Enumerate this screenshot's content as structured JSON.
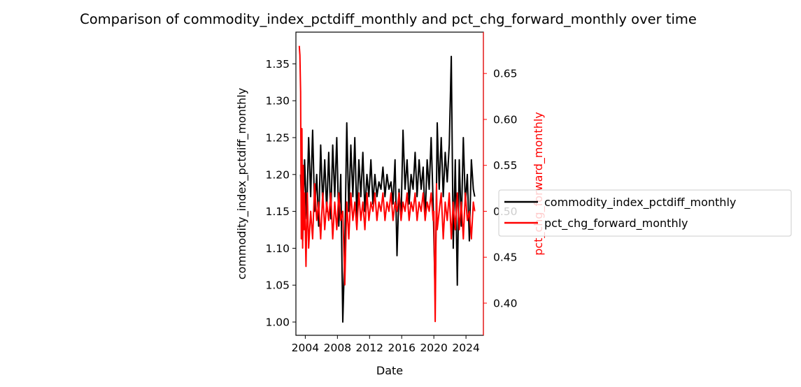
{
  "chart_data": {
    "type": "line",
    "title": "Comparison of commodity_index_pctdiff_monthly and pct_chg_forward_monthly over time",
    "xlabel": "Date",
    "ylabel_left": "commodity_index_pctdiff_monthly",
    "ylabel_right": "pct_chg_forward_monthly",
    "x_ticks": [
      "2004",
      "2008",
      "2012",
      "2016",
      "2020",
      "2024"
    ],
    "y_left_ticks": [
      "1.00",
      "1.05",
      "1.10",
      "1.15",
      "1.20",
      "1.25",
      "1.30",
      "1.35"
    ],
    "y_right_ticks": [
      "0.40",
      "0.45",
      "0.50",
      "0.55",
      "0.60",
      "0.65"
    ],
    "xlim": [
      "2002-11",
      "2026-03"
    ],
    "ylim_left": [
      0.982,
      1.393
    ],
    "ylim_right": [
      0.365,
      0.695
    ],
    "legend": {
      "placement": "right"
    },
    "colors": {
      "left_axis": "#000000",
      "right_axis": "#ff0000"
    },
    "series": [
      {
        "name": "commodity_index_pctdiff_monthly",
        "axis": "left",
        "color": "#000000",
        "x": [
          "2003-06",
          "2003-09",
          "2003-12",
          "2004-03",
          "2004-06",
          "2004-09",
          "2004-12",
          "2005-03",
          "2005-06",
          "2005-09",
          "2005-12",
          "2006-03",
          "2006-06",
          "2006-09",
          "2006-12",
          "2007-03",
          "2007-06",
          "2007-09",
          "2007-12",
          "2008-03",
          "2008-06",
          "2008-09",
          "2008-12",
          "2009-03",
          "2009-06",
          "2009-09",
          "2009-12",
          "2010-03",
          "2010-06",
          "2010-09",
          "2010-12",
          "2011-03",
          "2011-06",
          "2011-09",
          "2011-12",
          "2012-03",
          "2012-06",
          "2012-09",
          "2012-12",
          "2013-03",
          "2013-06",
          "2013-09",
          "2013-12",
          "2014-03",
          "2014-06",
          "2014-09",
          "2014-12",
          "2015-03",
          "2015-06",
          "2015-09",
          "2015-12",
          "2016-03",
          "2016-06",
          "2016-09",
          "2016-12",
          "2017-03",
          "2017-06",
          "2017-09",
          "2017-12",
          "2018-03",
          "2018-06",
          "2018-09",
          "2018-12",
          "2019-03",
          "2019-06",
          "2019-09",
          "2019-12",
          "2020-03",
          "2020-06",
          "2020-09",
          "2020-12",
          "2021-03",
          "2021-06",
          "2021-09",
          "2021-12",
          "2022-03",
          "2022-06",
          "2022-09",
          "2022-12",
          "2023-03",
          "2023-06",
          "2023-09",
          "2023-12",
          "2024-03",
          "2024-06",
          "2024-09",
          "2024-12",
          "2025-02"
        ],
        "values": [
          1.2,
          1.11,
          1.22,
          1.14,
          1.25,
          1.17,
          1.26,
          1.15,
          1.2,
          1.13,
          1.24,
          1.16,
          1.22,
          1.15,
          1.23,
          1.14,
          1.24,
          1.17,
          1.25,
          1.13,
          1.2,
          1.0,
          1.1,
          1.27,
          1.15,
          1.24,
          1.17,
          1.25,
          1.14,
          1.22,
          1.17,
          1.23,
          1.15,
          1.2,
          1.17,
          1.22,
          1.16,
          1.2,
          1.17,
          1.19,
          1.18,
          1.21,
          1.17,
          1.2,
          1.18,
          1.19,
          1.16,
          1.22,
          1.09,
          1.18,
          1.14,
          1.26,
          1.18,
          1.22,
          1.16,
          1.2,
          1.18,
          1.23,
          1.17,
          1.22,
          1.18,
          1.21,
          1.14,
          1.22,
          1.18,
          1.25,
          1.16,
          1.03,
          1.27,
          1.18,
          1.25,
          1.17,
          1.23,
          1.19,
          1.24,
          1.36,
          1.1,
          1.22,
          1.05,
          1.22,
          1.13,
          1.25,
          1.16,
          1.2,
          1.11,
          1.22,
          1.18,
          1.17
        ]
      },
      {
        "name": "pct_chg_forward_monthly",
        "axis": "right",
        "color": "#ff0000",
        "x": [
          "2003-04",
          "2003-05",
          "2003-06",
          "2003-07",
          "2003-08",
          "2003-09",
          "2003-10",
          "2003-11",
          "2003-12",
          "2004-02",
          "2004-04",
          "2004-06",
          "2004-09",
          "2004-12",
          "2005-03",
          "2005-06",
          "2005-09",
          "2005-12",
          "2006-03",
          "2006-06",
          "2006-09",
          "2006-12",
          "2007-03",
          "2007-06",
          "2007-09",
          "2007-12",
          "2008-03",
          "2008-06",
          "2008-09",
          "2008-12",
          "2009-03",
          "2009-06",
          "2009-09",
          "2009-12",
          "2010-03",
          "2010-06",
          "2010-09",
          "2010-12",
          "2011-03",
          "2011-06",
          "2011-09",
          "2011-12",
          "2012-03",
          "2012-06",
          "2012-09",
          "2012-12",
          "2013-03",
          "2013-06",
          "2013-09",
          "2013-12",
          "2014-03",
          "2014-06",
          "2014-09",
          "2014-12",
          "2015-03",
          "2015-06",
          "2015-09",
          "2015-12",
          "2016-03",
          "2016-06",
          "2016-09",
          "2016-12",
          "2017-03",
          "2017-06",
          "2017-09",
          "2017-12",
          "2018-03",
          "2018-06",
          "2018-09",
          "2018-12",
          "2019-03",
          "2019-06",
          "2019-09",
          "2019-12",
          "2020-01",
          "2020-03",
          "2020-05",
          "2020-06",
          "2020-09",
          "2020-12",
          "2021-03",
          "2021-06",
          "2021-09",
          "2021-12",
          "2022-03",
          "2022-06",
          "2022-09",
          "2022-12",
          "2023-03",
          "2023-06",
          "2023-09",
          "2023-12",
          "2024-03",
          "2024-06",
          "2024-09",
          "2024-12",
          "2025-02"
        ],
        "values": [
          0.68,
          0.67,
          0.63,
          0.47,
          0.59,
          0.46,
          0.55,
          0.48,
          0.52,
          0.44,
          0.52,
          0.46,
          0.5,
          0.47,
          0.53,
          0.49,
          0.51,
          0.47,
          0.52,
          0.48,
          0.51,
          0.49,
          0.52,
          0.47,
          0.51,
          0.48,
          0.52,
          0.49,
          0.5,
          0.42,
          0.51,
          0.47,
          0.52,
          0.49,
          0.51,
          0.48,
          0.52,
          0.49,
          0.51,
          0.48,
          0.52,
          0.49,
          0.51,
          0.5,
          0.52,
          0.49,
          0.51,
          0.5,
          0.52,
          0.49,
          0.51,
          0.5,
          0.52,
          0.49,
          0.51,
          0.5,
          0.52,
          0.49,
          0.51,
          0.5,
          0.52,
          0.49,
          0.51,
          0.5,
          0.52,
          0.49,
          0.51,
          0.5,
          0.52,
          0.49,
          0.51,
          0.5,
          0.52,
          0.49,
          0.5,
          0.38,
          0.53,
          0.48,
          0.5,
          0.52,
          0.47,
          0.51,
          0.49,
          0.52,
          0.47,
          0.51,
          0.48,
          0.52,
          0.48,
          0.51,
          0.47,
          0.52,
          0.49,
          0.5,
          0.47,
          0.51,
          0.5
        ]
      }
    ]
  }
}
